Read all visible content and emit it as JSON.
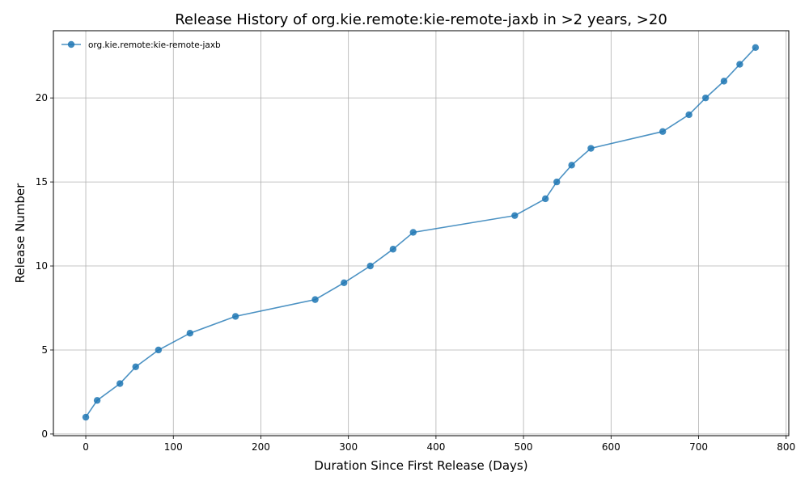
{
  "chart_data": {
    "type": "line",
    "title": "Release History of org.kie.remote:kie-remote-jaxb in >2 years, >20",
    "xlabel": "Duration Since First Release (Days)",
    "ylabel": "Release Number",
    "xlim": [
      -37,
      803
    ],
    "ylim": [
      -0.1,
      24.0
    ],
    "xticks": [
      0,
      100,
      200,
      300,
      400,
      500,
      600,
      700,
      800
    ],
    "yticks": [
      0,
      5,
      10,
      15,
      20
    ],
    "grid": true,
    "legend_position": "top-left",
    "color": "#1f77b4",
    "series": [
      {
        "name": "org.kie.remote:kie-remote-jaxb",
        "x": [
          0,
          13,
          39,
          57,
          83,
          119,
          171,
          262,
          295,
          325,
          351,
          374,
          490,
          525,
          538,
          555,
          577,
          659,
          689,
          708,
          729,
          747,
          765
        ],
        "y": [
          1,
          2,
          3,
          4,
          5,
          6,
          7,
          8,
          9,
          10,
          11,
          12,
          13,
          14,
          15,
          16,
          17,
          18,
          19,
          20,
          21,
          22,
          23
        ]
      }
    ]
  }
}
